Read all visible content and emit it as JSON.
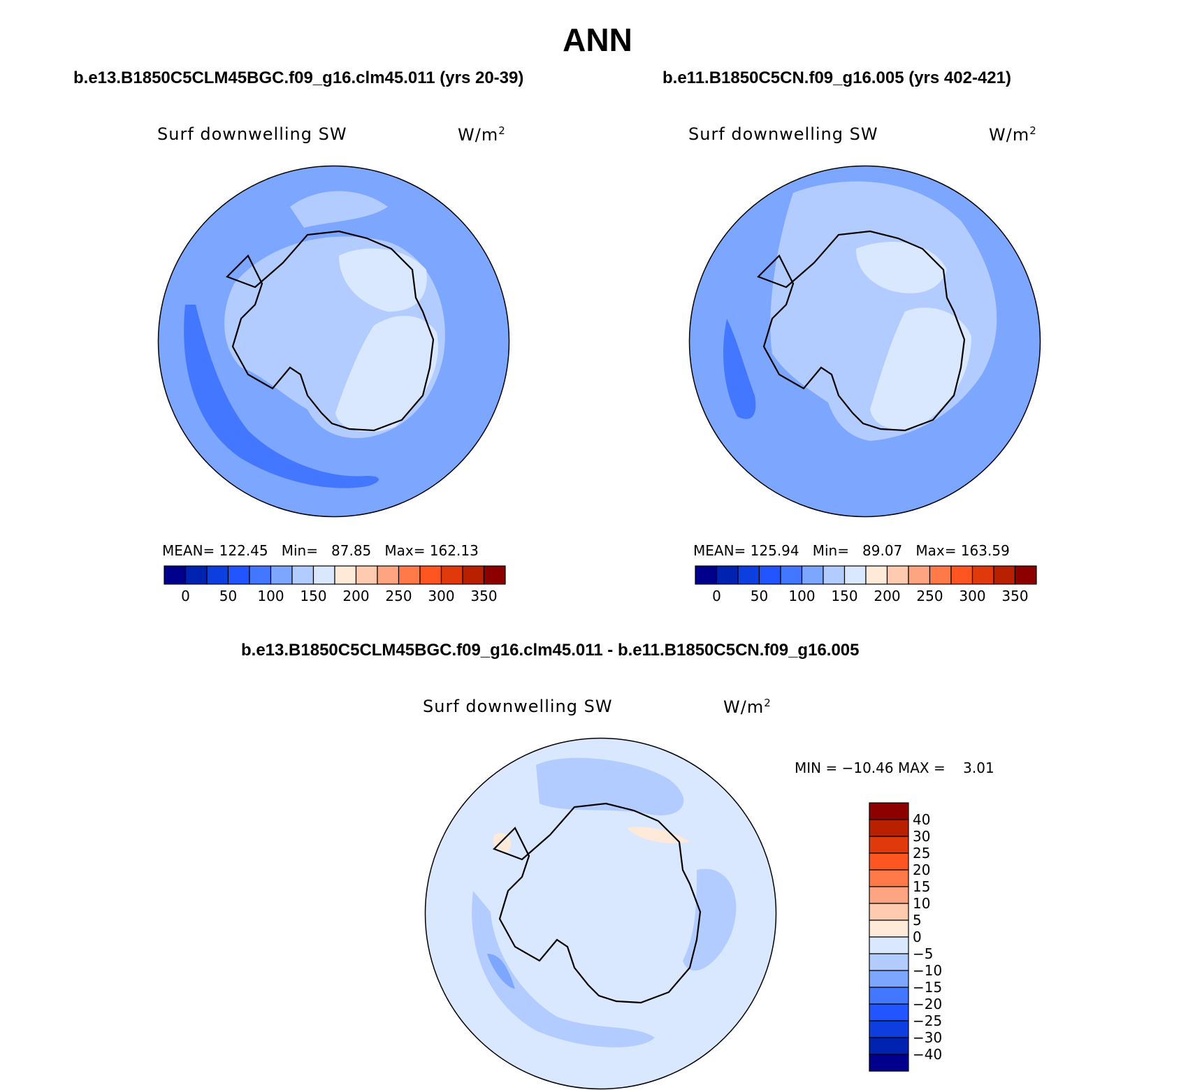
{
  "page": {
    "title": "ANN"
  },
  "panels": [
    {
      "case_title": "b.e13.B1850C5CLM45BGC.f09_g16.clm45.011 (yrs 20-39)",
      "variable": "Surf downwelling SW",
      "units": "W/m",
      "units_sup": "2",
      "stats": "MEAN= 122.45   Min=   87.85   Max= 162.13"
    },
    {
      "case_title": "b.e11.B1850C5CN.f09_g16.005 (yrs 402-421)",
      "variable": "Surf downwelling SW",
      "units": "W/m",
      "units_sup": "2",
      "stats": "MEAN= 125.94   Min=   89.07   Max= 163.59"
    }
  ],
  "diff_panel": {
    "case_title": "b.e13.B1850C5CLM45BGC.f09_g16.clm45.011 - b.e11.B1850C5CN.f09_g16.005",
    "variable": "Surf downwelling SW",
    "units": "W/m",
    "units_sup": "2",
    "stats": "MIN = −10.46 MAX =    3.01"
  },
  "colorbar_abs": {
    "colors": [
      "#00008c",
      "#0022b0",
      "#0c3ee0",
      "#2255ff",
      "#4477ff",
      "#7da6ff",
      "#b3ccff",
      "#d9e8ff",
      "#ffe9d8",
      "#ffcbb0",
      "#ffa480",
      "#ff7a48",
      "#ff5520",
      "#e03a0c",
      "#b82000",
      "#8c0000"
    ],
    "labels": [
      "0",
      "50",
      "100",
      "150",
      "200",
      "250",
      "300",
      "350"
    ]
  },
  "colorbar_diff": {
    "colors": [
      "#00008c",
      "#0022b0",
      "#0c3ee0",
      "#2255ff",
      "#4477ff",
      "#7da6ff",
      "#b3ccff",
      "#d9e8ff",
      "#ffe9d8",
      "#ffcbb0",
      "#ffa480",
      "#ff7a48",
      "#ff5520",
      "#e03a0c",
      "#b82000",
      "#8c0000"
    ],
    "labels": [
      "−40",
      "−30",
      "−25",
      "−20",
      "−15",
      "−10",
      "−5",
      "0",
      "5",
      "10",
      "15",
      "20",
      "25",
      "30",
      "40"
    ]
  },
  "map_colors": {
    "ocean_mid": "#7da6ff",
    "ocean_low": "#4477ff",
    "high": "#b3ccff",
    "highest": "#d9e8ff",
    "diff_base": "#d9e8ff",
    "diff_neg1": "#b3ccff",
    "diff_neg2": "#7da6ff",
    "diff_pos": "#ffe9d8"
  }
}
